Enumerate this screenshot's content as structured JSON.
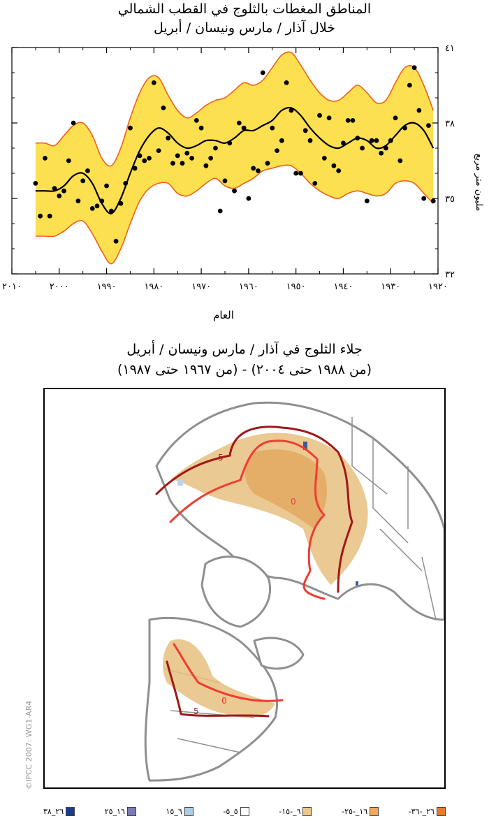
{
  "chart_data": {
    "type": "line",
    "title": "المناطق المغطات بالثلوج في القطب الشمالي",
    "subtitle": "خلال آذار / مارس ونيسان / أبريل",
    "xlabel": "العام",
    "ylabel": "مليون متر مربع",
    "xlim": [
      2010,
      1920
    ],
    "ylim": [
      32,
      41
    ],
    "x_ticks": [
      2010,
      2000,
      1990,
      1980,
      1970,
      1960,
      1950,
      1940,
      1930,
      1920
    ],
    "x_tick_labels": [
      "٢٠١٠",
      "٢٠٠٠",
      "١٩٩٠",
      "١٩٨٠",
      "١٩٧٠",
      "١٩٦٠",
      "١٩٥٠",
      "١٩٤٠",
      "١٩٣٠",
      "١٩٢٠"
    ],
    "y_ticks": [
      41,
      38,
      35,
      32
    ],
    "y_tick_labels": [
      "٤١",
      "٣٨",
      "٣٥",
      "٣٢"
    ],
    "band_color": "#fce050",
    "band_edge_color": "#f06018",
    "line_color": "#000000",
    "series": [
      {
        "name": "smoothed",
        "x": [
          2005,
          2003,
          2001,
          1999,
          1997,
          1995,
          1993,
          1991,
          1989,
          1987,
          1985,
          1983,
          1981,
          1979,
          1977,
          1975,
          1973,
          1971,
          1969,
          1967,
          1965,
          1963,
          1961,
          1959,
          1957,
          1955,
          1953,
          1951,
          1949,
          1947,
          1945,
          1943,
          1941,
          1939,
          1937,
          1935,
          1933,
          1931,
          1929,
          1927,
          1925,
          1923,
          1921
        ],
        "y": [
          35.3,
          35.3,
          35.3,
          35.5,
          35.9,
          36.0,
          35.6,
          34.8,
          34.4,
          35.0,
          36.0,
          36.9,
          37.5,
          37.8,
          37.6,
          37.2,
          37.0,
          37.1,
          37.3,
          37.3,
          37.2,
          37.4,
          37.7,
          37.7,
          37.9,
          38.1,
          38.5,
          38.6,
          38.3,
          37.8,
          37.4,
          37.1,
          37.0,
          37.2,
          37.4,
          37.3,
          37.0,
          37.1,
          37.5,
          37.9,
          38.0,
          37.7,
          37.0
        ]
      },
      {
        "name": "upper",
        "x": [
          2005,
          2003,
          2001,
          1999,
          1997,
          1995,
          1993,
          1991,
          1989,
          1987,
          1985,
          1983,
          1981,
          1979,
          1977,
          1975,
          1973,
          1971,
          1969,
          1967,
          1965,
          1963,
          1961,
          1959,
          1957,
          1955,
          1953,
          1951,
          1949,
          1947,
          1945,
          1943,
          1941,
          1939,
          1937,
          1935,
          1933,
          1931,
          1929,
          1927,
          1925,
          1923,
          1921
        ],
        "y": [
          37.2,
          37.2,
          37.1,
          37.5,
          37.9,
          38.0,
          37.5,
          36.6,
          36.3,
          37.0,
          38.2,
          39.2,
          39.8,
          39.8,
          39.1,
          38.5,
          38.2,
          38.4,
          38.7,
          38.9,
          39.0,
          39.3,
          39.6,
          39.5,
          39.7,
          40.2,
          40.7,
          40.8,
          40.3,
          39.7,
          39.2,
          38.9,
          38.9,
          39.2,
          39.5,
          39.2,
          38.8,
          38.9,
          39.6,
          40.2,
          40.2,
          39.5,
          38.5
        ]
      },
      {
        "name": "lower",
        "x": [
          2005,
          2003,
          2001,
          1999,
          1997,
          1995,
          1993,
          1991,
          1989,
          1987,
          1985,
          1983,
          1981,
          1979,
          1977,
          1975,
          1973,
          1971,
          1969,
          1967,
          1965,
          1963,
          1961,
          1959,
          1957,
          1955,
          1953,
          1951,
          1949,
          1947,
          1945,
          1943,
          1941,
          1939,
          1937,
          1935,
          1933,
          1931,
          1929,
          1927,
          1925,
          1923,
          1921
        ],
        "y": [
          33.5,
          33.5,
          33.5,
          33.7,
          34.0,
          34.1,
          33.6,
          32.9,
          32.4,
          33.0,
          34.0,
          34.9,
          35.4,
          35.6,
          35.6,
          35.2,
          35.1,
          35.3,
          35.6,
          35.8,
          35.5,
          35.4,
          35.6,
          35.8,
          36.1,
          36.2,
          36.3,
          36.3,
          36.0,
          35.6,
          35.3,
          35.1,
          35.0,
          35.2,
          35.3,
          35.2,
          35.1,
          35.2,
          35.6,
          35.7,
          35.6,
          35.2,
          34.8
        ]
      },
      {
        "name": "annual",
        "x": [
          2005,
          2004,
          2003,
          2002,
          2001,
          2000,
          1999,
          1998,
          1997,
          1996,
          1995,
          1994,
          1993,
          1992,
          1991,
          1990,
          1989,
          1988,
          1987,
          1986,
          1985,
          1984,
          1983,
          1982,
          1981,
          1980,
          1979,
          1978,
          1977,
          1976,
          1975,
          1974,
          1973,
          1972,
          1971,
          1970,
          1969,
          1968,
          1967,
          1966,
          1965,
          1964,
          1963,
          1962,
          1961,
          1960,
          1959,
          1958,
          1957,
          1956,
          1955,
          1954,
          1953,
          1952,
          1951,
          1950,
          1949,
          1948,
          1947,
          1946,
          1945,
          1944,
          1943,
          1942,
          1941,
          1940,
          1939,
          1938,
          1937,
          1936,
          1935,
          1934,
          1933,
          1932,
          1931,
          1930,
          1929,
          1928,
          1927,
          1926,
          1925,
          1924,
          1923,
          1922,
          1921
        ],
        "y": [
          35.6,
          34.3,
          36.6,
          34.3,
          35.4,
          35.1,
          35.3,
          36.5,
          38.0,
          34.9,
          35.7,
          36.1,
          34.6,
          34.7,
          34.9,
          35.5,
          34.5,
          33.3,
          34.8,
          35.6,
          37.8,
          36.2,
          36.7,
          36.5,
          36.6,
          39.6,
          36.9,
          38.6,
          37.4,
          36.4,
          36.7,
          36.4,
          36.8,
          36.6,
          38.1,
          37.8,
          36.3,
          36.6,
          37.0,
          34.5,
          35.7,
          37.2,
          35.3,
          38.0,
          37.8,
          35.0,
          36.2,
          36.1,
          40.0,
          36.4,
          37.8,
          36.9,
          37.3,
          39.6,
          38.5,
          36.0,
          36.0,
          37.7,
          37.3,
          35.6,
          38.3,
          36.6,
          38.2,
          36.3,
          36.1,
          37.2,
          38.1,
          38.1,
          37.4,
          37.0,
          34.9,
          37.3,
          37.3,
          36.8,
          37.0,
          37.3,
          38.2,
          36.5,
          37.8,
          39.5,
          40.2,
          38.5,
          35.0,
          37.9,
          34.9
        ]
      }
    ]
  },
  "map": {
    "title": "جلاء الثلوج في آذار / مارس ونيسان / أبريل",
    "subtitle": "(من ١٩٨٨ حتى ٢٠٠٤) - (من ١٩٦٧ حتى ١٩٨٧)",
    "credit": "©IPCC 2007: WG1-AR4",
    "contour_labels": {
      "zero": "0",
      "five": "5"
    },
    "colors": {
      "land": "#8f8f8f",
      "line_dark": "#a01818",
      "line_light": "#f03c32",
      "snow_light": "#e8c080",
      "snow_mid": "#e0a050"
    }
  },
  "legend": {
    "items": [
      {
        "label": "-٢٦_-٣٦",
        "color": "#e87a2a"
      },
      {
        "label": "-١٦_-٢٥",
        "color": "#f0a85a"
      },
      {
        "label": "-٦_-١٥",
        "color": "#ecc88a"
      },
      {
        "label": "-٥_٥",
        "color": "#ffffff"
      },
      {
        "label": "٦_١٥",
        "color": "#b0cce4"
      },
      {
        "label": "١٦_٢٥",
        "color": "#7a7ab4"
      },
      {
        "label": "٢٦_٣٨",
        "color": "#1a3c8c"
      }
    ]
  }
}
